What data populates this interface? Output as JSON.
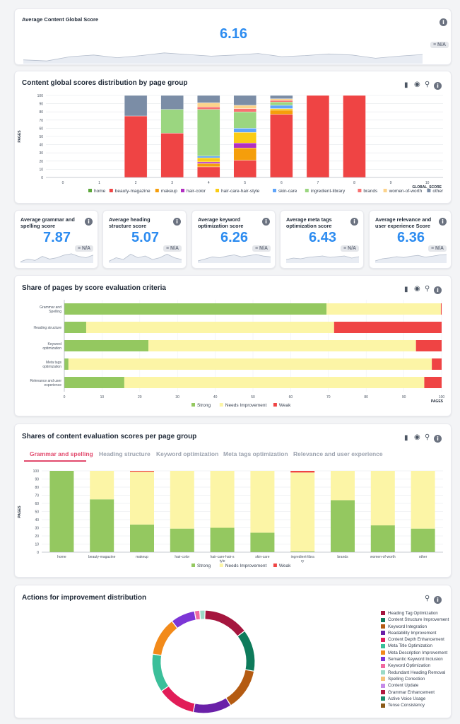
{
  "colors": {
    "accent": "#2d8cf0",
    "strong": "#94c860",
    "needs": "#fcf5a6",
    "weak": "#ef4444",
    "home": "#5ca73a",
    "beauty_magazine": "#ef4444",
    "makeup": "#f59e0b",
    "hair_color": "#b22fc2",
    "hair_care": "#facc15",
    "skin_care": "#60a5fa",
    "ingredient_library": "#9bd680",
    "brands": "#f87171",
    "women_of_worth": "#fcd38b",
    "other": "#7b8da6",
    "tab_active": "#e24a6d"
  },
  "global_score": {
    "title": "Average Content Global Score",
    "value": "6.16",
    "badge": "N/A",
    "sparkline": [
      5.2,
      5.0,
      5.8,
      6.1,
      5.6,
      6.0,
      6.5,
      6.2,
      5.9,
      6.1,
      6.4,
      5.8,
      6.0,
      6.3,
      6.1,
      5.5,
      5.9,
      6.2
    ]
  },
  "distribution": {
    "title": "Content global scores distribution by page group",
    "tools": {
      "bar": "bar-chart-icon",
      "eye": "eye-icon",
      "zoom": "zoom-icon",
      "info": "info-icon"
    }
  },
  "metrics": [
    {
      "title_line1": "Average grammar and",
      "title_line2": "spelling score",
      "value": "7.87",
      "badge": "N/A",
      "sparkline": [
        5,
        6,
        5.5,
        7,
        6,
        6.5,
        7.5,
        8,
        7,
        6.5,
        7.5
      ]
    },
    {
      "title_line1": "Average heading",
      "title_line2": "structure score",
      "value": "5.07",
      "badge": "N/A",
      "sparkline": [
        4,
        5,
        4.5,
        6,
        5,
        5.5,
        4.5,
        5,
        6,
        5,
        4.5
      ]
    },
    {
      "title_line1": "Average keyword",
      "title_line2": "optimization score",
      "value": "6.26",
      "badge": "N/A",
      "sparkline": [
        5,
        5.5,
        6,
        5.8,
        6.2,
        6.5,
        6,
        6.3,
        6.6,
        6.2,
        6
      ]
    },
    {
      "title_line1": "Average meta tags",
      "title_line2": "optimization score",
      "value": "6.43",
      "badge": "N/A",
      "sparkline": [
        6,
        6.2,
        6.1,
        6.3,
        6.4,
        6.5,
        6.3,
        6.4,
        6.5,
        6.2,
        6.4
      ]
    },
    {
      "title_line1": "Average relevance and",
      "title_line2": "user experience Score",
      "value": "6.36",
      "badge": "N/A",
      "sparkline": [
        5.5,
        6,
        6.2,
        6.5,
        6.3,
        6.6,
        6.8,
        6.4,
        6.6,
        6.9,
        7
      ]
    }
  ],
  "share_criteria": {
    "title": "Share of pages by score evaluation criteria"
  },
  "shares_group": {
    "title": "Shares of content evaluation scores per page group",
    "tabs": [
      "Grammar and spelling",
      "Heading structure",
      "Keyword optimization",
      "Meta tags optimization",
      "Relevance and user experience"
    ]
  },
  "actions": {
    "title": "Actions for improvement distribution",
    "legend": [
      {
        "label": "Heading Tag Optimization",
        "color": "#a5163e",
        "value": 13
      },
      {
        "label": "Content Structure Improvement",
        "color": "#0e7b5b",
        "value": 12
      },
      {
        "label": "Keyword Integration",
        "color": "#b45b12",
        "value": 12
      },
      {
        "label": "Readability Improvement",
        "color": "#6a20a8",
        "value": 11
      },
      {
        "label": "Content Depth Enhancement",
        "color": "#e11d58",
        "value": 11
      },
      {
        "label": "Meta Title Optimization",
        "color": "#3bbf9a",
        "value": 11
      },
      {
        "label": "Meta Description Improvement",
        "color": "#f28a1a",
        "value": 11
      },
      {
        "label": "Semantic Keyword Inclusion",
        "color": "#7c35d6",
        "value": 7
      },
      {
        "label": "Keyword Optimization",
        "color": "#f06aa0",
        "value": 1.5
      },
      {
        "label": "Redundant Heading Removal",
        "color": "#9bdac6",
        "value": 1.5
      },
      {
        "label": "Spelling Correction",
        "color": "#f5c27a",
        "value": 0
      },
      {
        "label": "Content Update",
        "color": "#c58be8",
        "value": 0
      },
      {
        "label": "Grammar Enhancement",
        "color": "#b3173f",
        "value": 0
      },
      {
        "label": "Active Voice Usage",
        "color": "#1a8a6a",
        "value": 0
      },
      {
        "label": "Tense Consistency",
        "color": "#8a5a18",
        "value": 0
      }
    ]
  },
  "chart_data": [
    {
      "type": "bar",
      "stacked": true,
      "title": "Content global scores distribution by page group",
      "xlabel": "GLOBAL_SCORE",
      "ylabel": "PAGES",
      "ylim": [
        0,
        100
      ],
      "yticks": [
        0,
        10,
        20,
        30,
        40,
        50,
        60,
        70,
        80,
        90,
        100
      ],
      "categories": [
        "0",
        "1",
        "2",
        "3",
        "4",
        "5",
        "6",
        "7",
        "8",
        "9",
        "10"
      ],
      "series": [
        {
          "name": "home",
          "values": [
            0,
            0,
            0,
            0,
            0,
            0,
            0,
            0,
            0,
            0,
            0
          ]
        },
        {
          "name": "beauty-magazine",
          "values": [
            0,
            0,
            75,
            54,
            13,
            21,
            77,
            100,
            100,
            0,
            0
          ]
        },
        {
          "name": "makeup",
          "values": [
            0,
            0,
            0,
            0,
            4,
            15,
            5,
            0,
            0,
            0,
            0
          ]
        },
        {
          "name": "hair-color",
          "values": [
            0,
            0,
            0,
            0,
            2,
            6,
            0,
            0,
            0,
            0,
            0
          ]
        },
        {
          "name": "hair-care-hair-style",
          "values": [
            0,
            0,
            0,
            0,
            5,
            13,
            2,
            0,
            0,
            0,
            0
          ]
        },
        {
          "name": "skin-care",
          "values": [
            0,
            0,
            0,
            0,
            2,
            5,
            4,
            0,
            0,
            0,
            0
          ]
        },
        {
          "name": "ingredient-library",
          "values": [
            0,
            0,
            0,
            29,
            57,
            20,
            4,
            0,
            0,
            0,
            0
          ]
        },
        {
          "name": "brands",
          "values": [
            0,
            0,
            0,
            0,
            3,
            4,
            2,
            0,
            0,
            0,
            0
          ]
        },
        {
          "name": "women-of-worth",
          "values": [
            0,
            0,
            0,
            0,
            5,
            4,
            2,
            0,
            0,
            0,
            0
          ]
        },
        {
          "name": "other",
          "values": [
            0,
            0,
            25,
            17,
            9,
            12,
            4,
            0,
            0,
            0,
            0
          ]
        }
      ]
    },
    {
      "type": "bar",
      "orientation": "horizontal",
      "stacked": true,
      "title": "Share of pages by score evaluation criteria",
      "xlabel": "PAGES",
      "xlim": [
        0,
        100
      ],
      "xticks": [
        0,
        10,
        20,
        30,
        40,
        50,
        60,
        70,
        80,
        90,
        100
      ],
      "categories": [
        "Grammar and Spelling",
        "Heading structure",
        "Keyword optimization",
        "Meta tags optimization",
        "Relevance and user experience"
      ],
      "series": [
        {
          "name": "Strong",
          "values": [
            69.5,
            5.8,
            22.3,
            1.1,
            15.9
          ]
        },
        {
          "name": "Needs Improvement",
          "values": [
            30.3,
            65.7,
            70.9,
            96.3,
            79.5
          ]
        },
        {
          "name": "Weak",
          "values": [
            0.2,
            28.5,
            6.8,
            2.6,
            4.6
          ]
        }
      ]
    },
    {
      "type": "bar",
      "stacked": true,
      "title": "Shares of content evaluation scores per page group",
      "ylabel": "PAGES",
      "ylim": [
        0,
        100
      ],
      "yticks": [
        0,
        10,
        20,
        30,
        40,
        50,
        60,
        70,
        80,
        90,
        100
      ],
      "categories": [
        "home",
        "beauty-magazine",
        "makeup",
        "hair-color",
        "hair-care-hair-style",
        "skin-care",
        "ingredient-library",
        "brands",
        "women-of-worth",
        "other"
      ],
      "series": [
        {
          "name": "Strong",
          "values": [
            100,
            65,
            34,
            29,
            30,
            24,
            1,
            64,
            33,
            29
          ]
        },
        {
          "name": "Needs Improvement",
          "values": [
            0,
            35,
            65,
            71,
            70,
            76,
            97,
            36,
            67,
            71
          ]
        },
        {
          "name": "Weak",
          "values": [
            0,
            0,
            1,
            0,
            0,
            0,
            2,
            0,
            0,
            0
          ]
        }
      ]
    },
    {
      "type": "pie",
      "donut": true,
      "title": "Actions for improvement distribution",
      "labels": [
        "Heading Tag Optimization",
        "Content Structure Improvement",
        "Keyword Integration",
        "Readability Improvement",
        "Content Depth Enhancement",
        "Meta Title Optimization",
        "Meta Description Improvement",
        "Semantic Keyword Inclusion",
        "Keyword Optimization",
        "Redundant Heading Removal",
        "Spelling Correction",
        "Content Update",
        "Grammar Enhancement",
        "Active Voice Usage",
        "Tense Consistency"
      ],
      "values": [
        13,
        12,
        12,
        11,
        11,
        11,
        11,
        7,
        1.5,
        1.5,
        0,
        0,
        0,
        0,
        0
      ]
    }
  ]
}
